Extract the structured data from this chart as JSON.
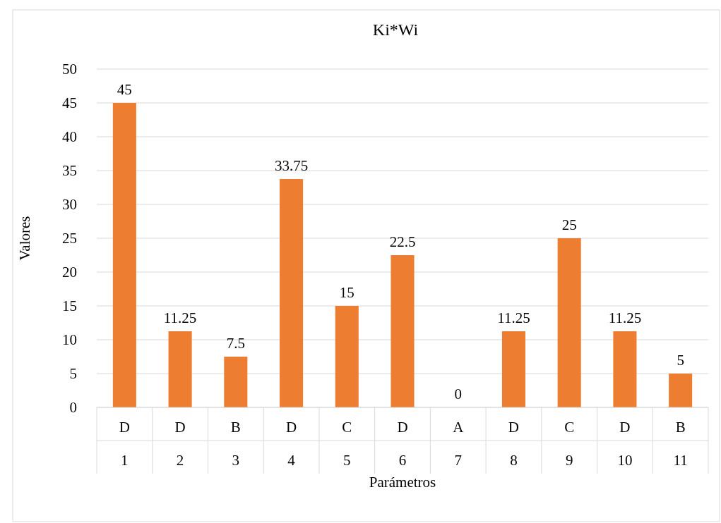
{
  "chart_data": {
    "type": "bar",
    "title": "Ki*Wi",
    "xlabel": "Parámetros",
    "ylabel": "Valores",
    "categories": [
      "D\n1",
      "D\n2",
      "B\n3",
      "D\n4",
      "C\n5",
      "D\n6",
      "A\n7",
      "D\n8",
      "C\n9",
      "D\n10",
      "B\n11"
    ],
    "values": [
      45,
      11.25,
      7.5,
      33.75,
      15,
      22.5,
      0,
      11.25,
      25,
      11.25,
      5
    ],
    "color": "#ed7d31",
    "ylim": [
      0,
      50
    ],
    "yticks": [
      0,
      5,
      10,
      15,
      20,
      25,
      30,
      35,
      40,
      45,
      50
    ],
    "grid": "y",
    "data_labels": true
  }
}
